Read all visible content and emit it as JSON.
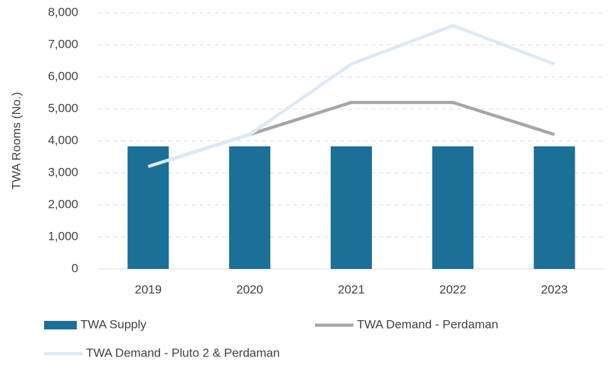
{
  "chart_data": {
    "type": "combo",
    "y_label": "TWA Rooms (No.)",
    "categories": [
      "2019",
      "2020",
      "2021",
      "2022",
      "2023"
    ],
    "series": [
      {
        "name": "TWA Supply",
        "type": "bar",
        "color": "#1a7096",
        "values": [
          3830,
          3830,
          3830,
          3830,
          3830
        ]
      },
      {
        "name": "TWA Demand - Perdaman",
        "type": "line",
        "color": "#a6a6a6",
        "values": [
          3200,
          4200,
          5200,
          5200,
          4200
        ]
      },
      {
        "name": "TWA Demand - Pluto 2 & Perdaman",
        "type": "line",
        "color": "#dce9f6",
        "values": [
          3200,
          4200,
          6400,
          7600,
          6400
        ]
      }
    ],
    "ylim": [
      0,
      8000
    ],
    "yticks": [
      0,
      {
        "value": 1000,
        "label": "1,000"
      },
      {
        "value": 2000,
        "label": "2,000"
      },
      {
        "value": 3000,
        "label": "3,000"
      },
      {
        "value": 4000,
        "label": "4,000"
      },
      {
        "value": 5000,
        "label": "5,000"
      },
      {
        "value": 6000,
        "label": "6,000"
      },
      {
        "value": 7000,
        "label": "7,000"
      },
      {
        "value": 8000,
        "label": "8,000"
      }
    ],
    "grid": true,
    "legend": "bottom"
  }
}
